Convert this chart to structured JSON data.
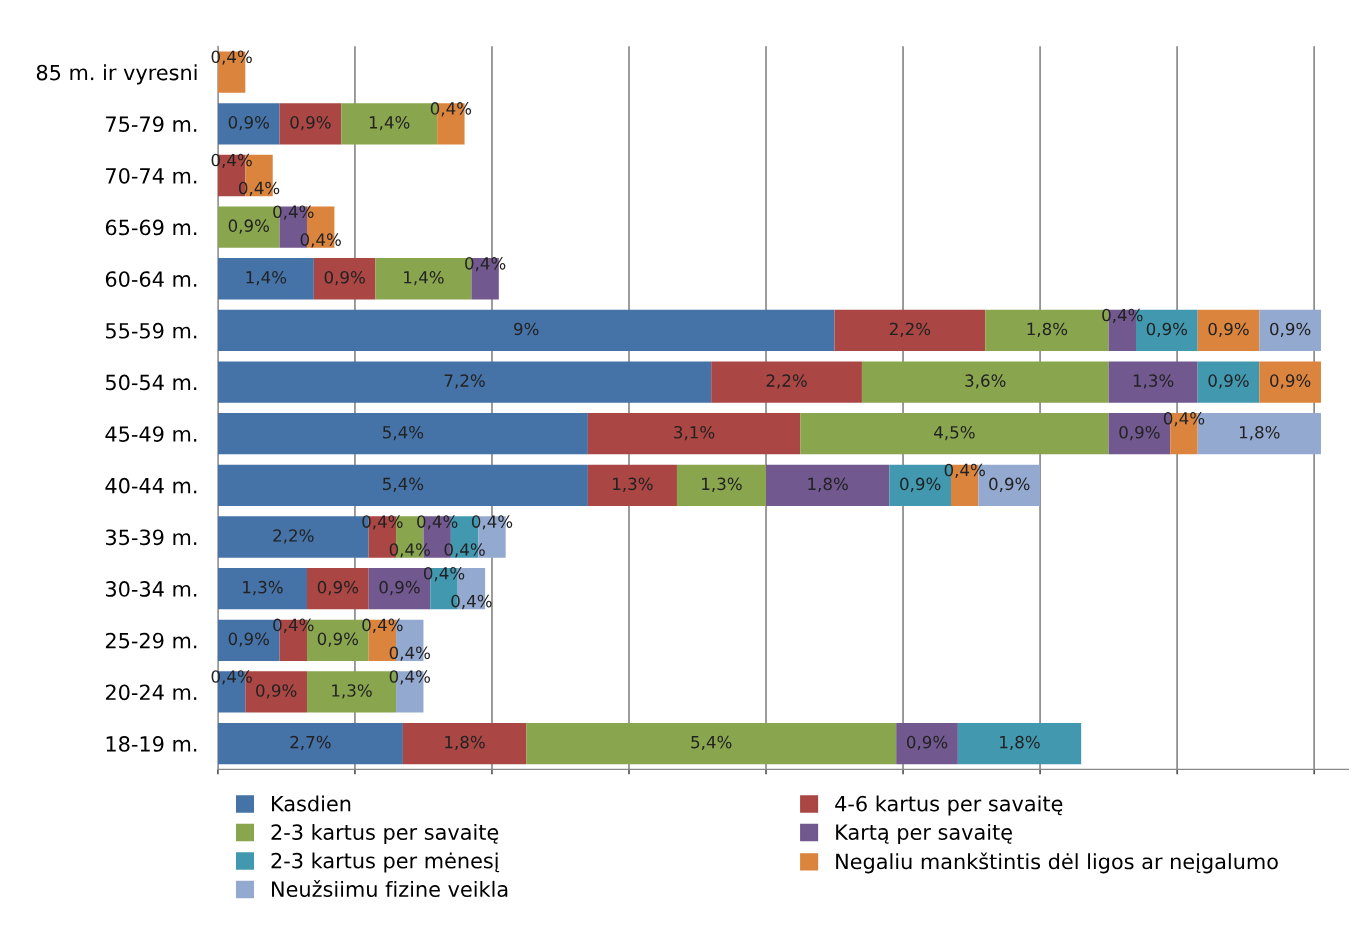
{
  "chart_data": {
    "type": "bar",
    "orientation": "horizontal",
    "stacked": true,
    "grid": "x",
    "legend": "bottom",
    "categories": [
      "85 m. ir vyresni",
      "75-79 m.",
      "70-74 m.",
      "65-69 m.",
      "60-64 m.",
      "55-59 m.",
      "50-54 m.",
      "45-49 m.",
      "40-44 m.",
      "35-39 m.",
      "30-34 m.",
      "25-29 m.",
      "20-24 m.",
      "18-19 m."
    ],
    "xlim": [
      0,
      16.5
    ],
    "xticks": [
      {
        "value": 0,
        "label": null
      },
      {
        "value": 2,
        "label": null
      },
      {
        "value": 4,
        "label": null
      },
      {
        "value": 6,
        "label": null
      },
      {
        "value": 8,
        "label": null
      },
      {
        "value": 10,
        "label": null
      },
      {
        "value": 12,
        "label": null
      },
      {
        "value": 14,
        "label": null
      },
      {
        "value": 16,
        "label": null
      }
    ],
    "tick_labels": "y",
    "series": [
      {
        "name": "Kasdien",
        "color": "#4572a7",
        "values": [
          null,
          0.9,
          null,
          null,
          1.4,
          9,
          7.2,
          5.4,
          5.4,
          2.2,
          1.3,
          0.9,
          0.4,
          2.7
        ],
        "value_labels": [
          null,
          "0,9%",
          null,
          null,
          "1,4%",
          "9%",
          "7,2%",
          "5,4%",
          "5,4%",
          "2,2%",
          "1,3%",
          "0,9%",
          "0,4%",
          "2,7%"
        ]
      },
      {
        "name": "4-6 kartus per savaitę",
        "color": "#aa4643",
        "values": [
          null,
          0.9,
          0.4,
          null,
          0.9,
          2.2,
          2.2,
          3.1,
          1.3,
          0.4,
          0.9,
          0.4,
          0.9,
          1.8
        ],
        "value_labels": [
          null,
          "0,9%",
          "0,4%",
          null,
          "0,9%",
          "2,2%",
          "2,2%",
          "3,1%",
          "1,3%",
          "0,4%",
          "0,9%",
          "0,4%",
          "0,9%",
          "1,8%"
        ]
      },
      {
        "name": "2-3 kartus per savaitę",
        "color": "#89a54e",
        "values": [
          null,
          1.4,
          null,
          0.9,
          1.4,
          1.8,
          3.6,
          4.5,
          1.3,
          0.4,
          null,
          0.9,
          1.3,
          5.4
        ],
        "value_labels": [
          null,
          "1,4%",
          null,
          "0,9%",
          "1,4%",
          "1,8%",
          "3,6%",
          "4,5%",
          "1,3%",
          "0,4%",
          null,
          "0,9%",
          "1,3%",
          "5,4%"
        ]
      },
      {
        "name": "Kartą per savaitę",
        "color": "#71588f",
        "values": [
          null,
          null,
          null,
          0.4,
          0.4,
          0.4,
          1.3,
          0.9,
          1.8,
          0.4,
          0.9,
          null,
          null,
          0.9
        ],
        "value_labels": [
          null,
          null,
          null,
          "0,4%",
          "0,4%",
          "0,4%",
          "1,3%",
          "0,9%",
          "1,8%",
          "0,4%",
          "0,9%",
          null,
          null,
          "0,9%"
        ]
      },
      {
        "name": "2-3 kartus per mėnesį",
        "color": "#4198af",
        "values": [
          null,
          null,
          null,
          null,
          null,
          0.9,
          0.9,
          null,
          0.9,
          0.4,
          0.4,
          null,
          null,
          1.8
        ],
        "value_labels": [
          null,
          null,
          null,
          null,
          null,
          "0,9%",
          "0,9%",
          null,
          "0,9%",
          "0,4%",
          "0,4%",
          null,
          null,
          "1,8%"
        ]
      },
      {
        "name": "Negaliu mankštintis dėl ligos ar neįgalumo",
        "color": "#db843d",
        "values": [
          0.4,
          0.4,
          0.4,
          0.4,
          null,
          0.9,
          0.9,
          0.4,
          0.4,
          null,
          null,
          0.4,
          null,
          null
        ],
        "value_labels": [
          "0,4%",
          "0,4%",
          "0,4%",
          "0,4%",
          null,
          "0,9%",
          "0,9%",
          "0,4%",
          "0,4%",
          null,
          null,
          "0,4%",
          null,
          null
        ]
      },
      {
        "name": "Neužsiimu fizine veikla",
        "color": "#93a9cf",
        "values": [
          null,
          null,
          null,
          null,
          null,
          0.9,
          null,
          1.8,
          0.9,
          0.4,
          0.4,
          0.4,
          0.4,
          null
        ],
        "value_labels": [
          null,
          null,
          null,
          null,
          null,
          "0,9%",
          null,
          "1,8%",
          "0,9%",
          "0,4%",
          "0,4%",
          "0,4%",
          "0,4%",
          null
        ]
      }
    ]
  }
}
